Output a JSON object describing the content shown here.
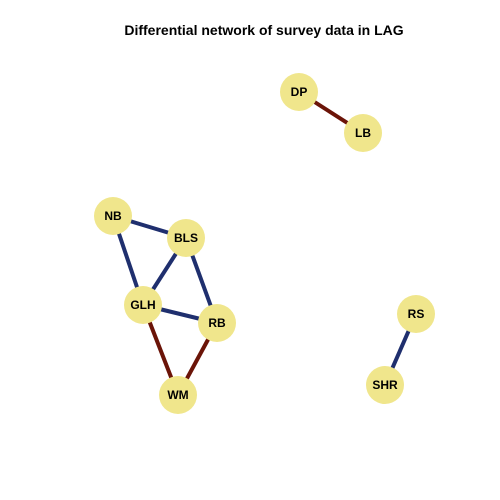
{
  "title": "Differential network of survey data in LAG",
  "colors": {
    "node_fill": "#f0e68c",
    "positive_edge": "#1f2f6e",
    "negative_edge": "#6b1408",
    "background": "#ffffff"
  },
  "nodes": [
    {
      "id": "DP",
      "label": "DP"
    },
    {
      "id": "LB",
      "label": "LB"
    },
    {
      "id": "NB",
      "label": "NB"
    },
    {
      "id": "BLS",
      "label": "BLS"
    },
    {
      "id": "GLH",
      "label": "GLH"
    },
    {
      "id": "RB",
      "label": "RB"
    },
    {
      "id": "WM",
      "label": "WM"
    },
    {
      "id": "RS",
      "label": "RS"
    },
    {
      "id": "SHR",
      "label": "SHR"
    }
  ],
  "edges": [
    {
      "source": "DP",
      "target": "LB",
      "sign": "negative"
    },
    {
      "source": "NB",
      "target": "BLS",
      "sign": "positive"
    },
    {
      "source": "NB",
      "target": "GLH",
      "sign": "positive"
    },
    {
      "source": "BLS",
      "target": "GLH",
      "sign": "positive"
    },
    {
      "source": "BLS",
      "target": "RB",
      "sign": "positive"
    },
    {
      "source": "GLH",
      "target": "RB",
      "sign": "positive"
    },
    {
      "source": "GLH",
      "target": "WM",
      "sign": "negative"
    },
    {
      "source": "RB",
      "target": "WM",
      "sign": "negative"
    },
    {
      "source": "RS",
      "target": "SHR",
      "sign": "positive"
    }
  ]
}
